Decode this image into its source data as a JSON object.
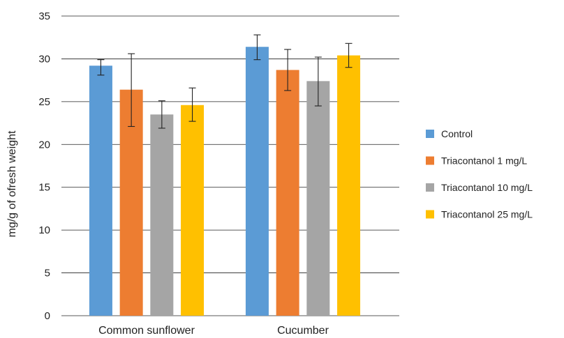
{
  "chart_data": {
    "type": "bar",
    "title": "",
    "xlabel": "",
    "ylabel": "mg/g of ofresh weight",
    "ylim": [
      0,
      35
    ],
    "yticks": [
      0,
      5,
      10,
      15,
      20,
      25,
      30,
      35
    ],
    "grid": true,
    "legend_position": "right",
    "categories": [
      "Common sunflower",
      "Cucumber"
    ],
    "series": [
      {
        "name": "Control",
        "color": "#5B9BD5",
        "values": [
          29.2,
          31.4
        ],
        "error_low": [
          28.1,
          29.9
        ],
        "error_high": [
          29.9,
          32.8
        ]
      },
      {
        "name": "Triacontanol 1 mg/L",
        "color": "#ED7D31",
        "values": [
          26.4,
          28.7
        ],
        "error_low": [
          22.1,
          26.3
        ],
        "error_high": [
          30.6,
          31.1
        ]
      },
      {
        "name": "Triacontanol 10 mg/L",
        "color": "#A5A5A5",
        "values": [
          23.5,
          27.4
        ],
        "error_low": [
          21.9,
          24.5
        ],
        "error_high": [
          25.1,
          30.2
        ]
      },
      {
        "name": "Triacontanol 25 mg/L",
        "color": "#FFC000",
        "values": [
          24.6,
          30.4
        ],
        "error_low": [
          22.7,
          29.0
        ],
        "error_high": [
          26.6,
          31.8
        ]
      }
    ]
  }
}
